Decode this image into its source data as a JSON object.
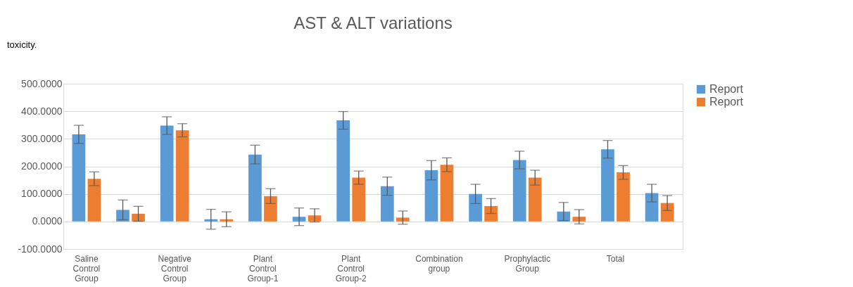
{
  "chart_data": {
    "type": "bar",
    "title": "AST & ALT variations",
    "annotations": [
      "toxicity."
    ],
    "categories": [
      "Saline Control Group",
      null,
      "Negative Control Group",
      null,
      "Plant Control Group-1",
      null,
      "Plant Control Group-2",
      null,
      "Combination group",
      null,
      "Prophylactic Group",
      null,
      "Total",
      null
    ],
    "series": [
      {
        "name": "Report",
        "color": "#5b9bd5",
        "values": [
          316,
          42,
          348,
          8,
          243,
          17,
          367,
          128,
          186,
          100,
          223,
          36,
          262,
          103
        ],
        "errors": [
          33,
          36,
          32,
          36,
          34,
          32,
          32,
          33,
          35,
          35,
          32,
          33,
          32,
          32
        ]
      },
      {
        "name": "Report",
        "color": "#ed7d31",
        "values": [
          155,
          28,
          331,
          8,
          92,
          22,
          159,
          14,
          206,
          56,
          159,
          17,
          178,
          67
        ],
        "errors": [
          25,
          27,
          24,
          27,
          27,
          24,
          24,
          24,
          25,
          27,
          27,
          26,
          25,
          27
        ]
      }
    ],
    "ylim": [
      -100,
      500
    ],
    "yticks": [
      {
        "value": -100,
        "label": "-100.0000"
      },
      {
        "value": 0,
        "label": "0.0000"
      },
      {
        "value": 100,
        "label": "100.0000"
      },
      {
        "value": 200,
        "label": "200.0000"
      },
      {
        "value": 300,
        "label": "300.0000"
      },
      {
        "value": 400,
        "label": "400.0000"
      },
      {
        "value": 500,
        "label": "500.0000"
      }
    ],
    "grid": "y",
    "legend": "right"
  }
}
